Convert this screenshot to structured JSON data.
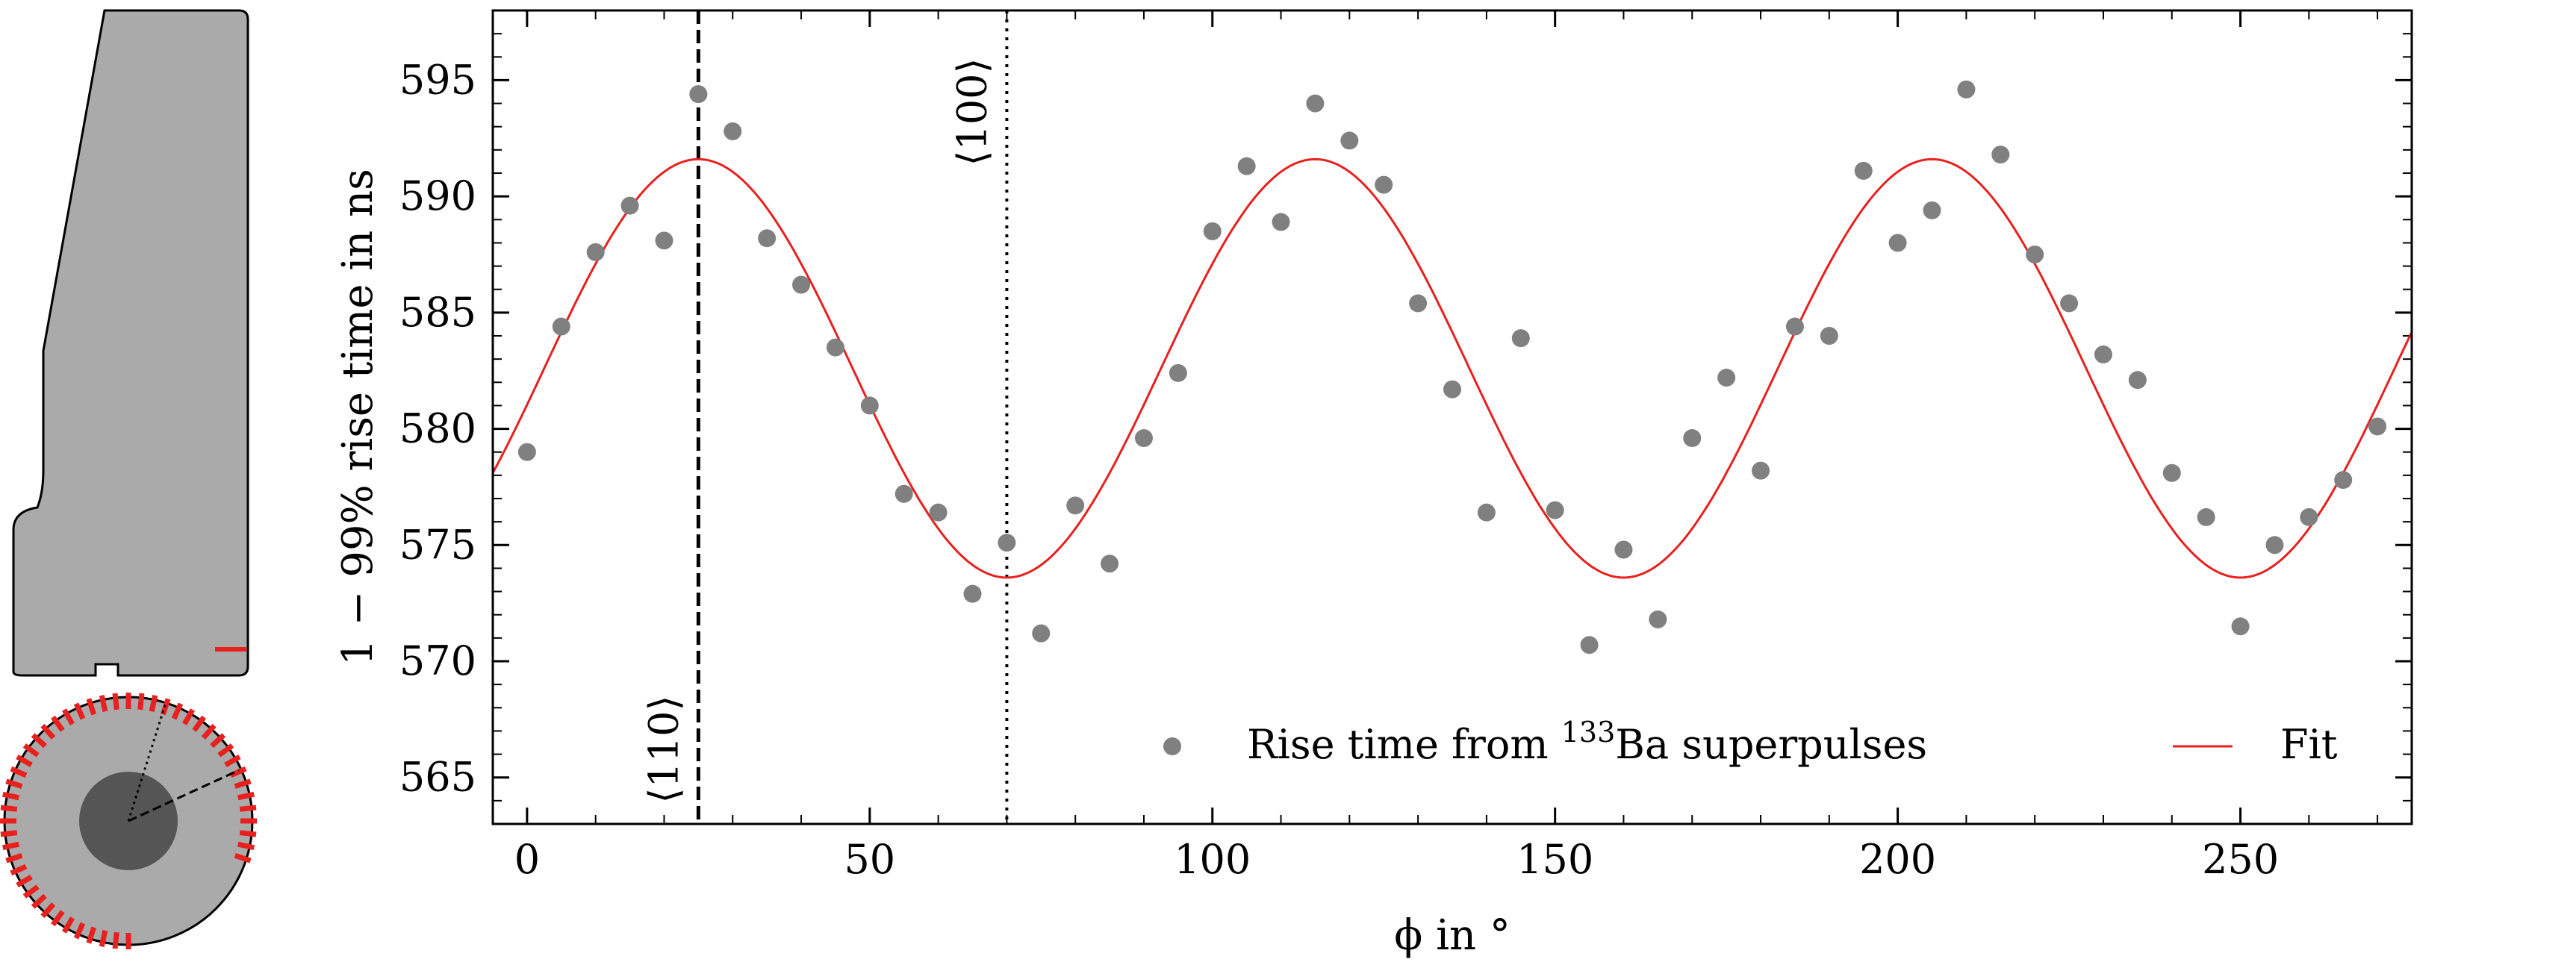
{
  "colors": {
    "marker": "#808080",
    "fit": "#e8201e",
    "detector_body": "#aaaaaa",
    "detector_core": "#555555",
    "segments": "#e8201e"
  },
  "chart_data": {
    "type": "scatter",
    "xlabel": "ϕ in °",
    "ylabel": "1 − 99% rise time in ns",
    "xlim": [
      -5,
      275
    ],
    "ylim": [
      563,
      598
    ],
    "xticks": [
      0,
      50,
      100,
      150,
      200,
      250
    ],
    "yticks": [
      565,
      570,
      575,
      580,
      585,
      590,
      595
    ],
    "grid": false,
    "legend_position": "bottom-right",
    "legend": {
      "points_label_before": "Rise time from ",
      "points_label_sup": "133",
      "points_label_after": "Ba superpulses",
      "fit_label": "Fit"
    },
    "annotations": [
      {
        "label": "⟨110⟩",
        "x": 25,
        "style": "dashed"
      },
      {
        "label": "⟨100⟩",
        "x": 70,
        "style": "dotted"
      }
    ],
    "series": [
      {
        "kind": "points",
        "x": [
          0,
          5,
          10,
          15,
          20,
          25,
          30,
          35,
          40,
          45,
          50,
          55,
          60,
          65,
          70,
          75,
          80,
          85,
          90,
          95,
          100,
          105,
          110,
          115,
          120,
          125,
          130,
          135,
          140,
          145,
          150,
          155,
          160,
          165,
          170,
          175,
          180,
          185,
          190,
          195,
          200,
          205,
          210,
          215,
          220,
          225,
          230,
          235,
          240,
          245,
          250,
          255,
          260,
          265,
          270
        ],
        "y": [
          579.0,
          584.4,
          587.6,
          589.6,
          588.1,
          594.4,
          592.8,
          588.2,
          586.2,
          583.5,
          581.0,
          577.2,
          576.4,
          572.9,
          575.1,
          571.2,
          576.7,
          574.2,
          579.6,
          582.4,
          588.5,
          591.3,
          588.9,
          594.0,
          592.4,
          590.5,
          585.4,
          581.7,
          576.4,
          583.9,
          576.5,
          570.7,
          574.8,
          571.8,
          579.6,
          582.2,
          578.2,
          584.4,
          584.0,
          591.1,
          588.0,
          589.4,
          594.6,
          591.8,
          587.5,
          585.4,
          583.2,
          582.1,
          578.1,
          576.2,
          571.5,
          575.0,
          576.2,
          577.8,
          580.1
        ]
      },
      {
        "kind": "fit",
        "function": "582.6 + 9.0*cos(4*(phi - 25) deg)",
        "offset": 582.6,
        "amplitude": 9.0,
        "phase": 25,
        "frequency": 4
      }
    ]
  }
}
